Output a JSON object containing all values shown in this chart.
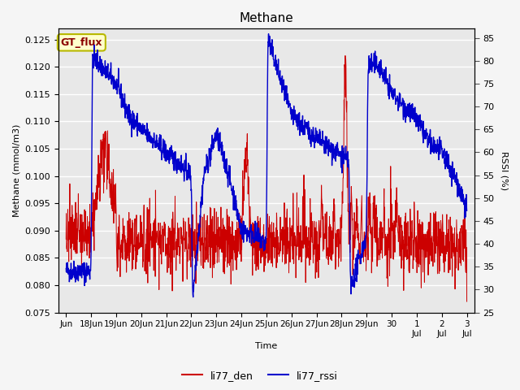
{
  "title": "Methane",
  "xlabel": "Time",
  "ylabel_left": "Methane (mmol/m3)",
  "ylabel_right": "RSSI (%)",
  "ylim_left": [
    0.075,
    0.127
  ],
  "ylim_right": [
    25,
    87
  ],
  "yticks_left": [
    0.075,
    0.08,
    0.085,
    0.09,
    0.095,
    0.1,
    0.105,
    0.11,
    0.115,
    0.12,
    0.125
  ],
  "yticks_right": [
    25,
    30,
    35,
    40,
    45,
    50,
    55,
    60,
    65,
    70,
    75,
    80,
    85
  ],
  "fig_bg_color": "#f5f5f5",
  "plot_bg_color": "#e8e8e8",
  "line_color_red": "#cc0000",
  "line_color_blue": "#0000cc",
  "legend_labels": [
    "li77_den",
    "li77_rssi"
  ],
  "annotation_text": "GT_flux",
  "annotation_color": "#8b0000",
  "annotation_bg": "#ffffcc",
  "annotation_border": "#b8b800",
  "grid_color": "#ffffff",
  "n_points": 1600,
  "seed": 42
}
